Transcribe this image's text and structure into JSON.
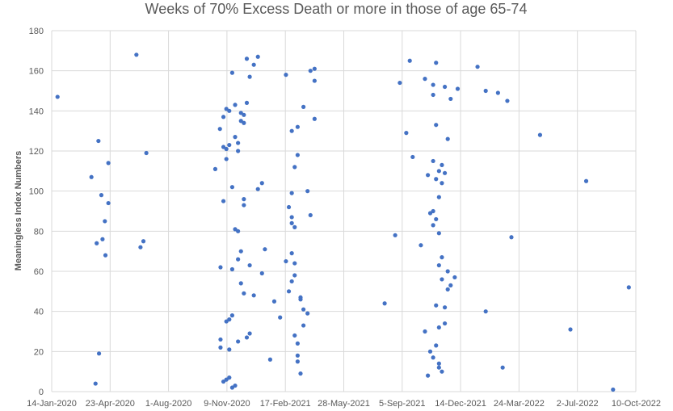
{
  "chart_data": {
    "type": "scatter",
    "title": "Weeks of 70% Excess Death or more in those of age 65-74",
    "xlabel": "",
    "ylabel": "Meaningless Index Numbers",
    "x_ticks": [
      "14-Jan-2020",
      "23-Apr-2020",
      "1-Aug-2020",
      "9-Nov-2020",
      "17-Feb-2021",
      "28-May-2021",
      "5-Sep-2021",
      "14-Dec-2021",
      "24-Mar-2022",
      "2-Jul-2022",
      "10-Oct-2022"
    ],
    "xlim": [
      "2020-01-14",
      "2022-10-10"
    ],
    "ylim": [
      0,
      180
    ],
    "y_ticks": [
      0,
      20,
      40,
      60,
      80,
      100,
      120,
      140,
      160,
      180
    ],
    "grid": "major gridlines on both axes",
    "marker_color": "#4472C4",
    "points": [
      [
        "2020-01-24",
        147
      ],
      [
        "2020-03-22",
        107
      ],
      [
        "2020-03-31",
        74
      ],
      [
        "2020-03-29",
        4
      ],
      [
        "2020-04-03",
        125
      ],
      [
        "2020-04-04",
        19
      ],
      [
        "2020-04-08",
        98
      ],
      [
        "2020-04-10",
        76
      ],
      [
        "2020-04-14",
        85
      ],
      [
        "2020-04-15",
        68
      ],
      [
        "2020-04-20",
        114
      ],
      [
        "2020-04-20",
        94
      ],
      [
        "2020-06-07",
        168
      ],
      [
        "2020-06-14",
        72
      ],
      [
        "2020-06-19",
        75
      ],
      [
        "2020-06-24",
        119
      ],
      [
        "2020-10-20",
        111
      ],
      [
        "2020-10-28",
        131
      ],
      [
        "2020-10-29",
        62
      ],
      [
        "2020-10-29",
        26
      ],
      [
        "2020-10-29",
        22
      ],
      [
        "2020-11-03",
        137
      ],
      [
        "2020-11-03",
        122
      ],
      [
        "2020-11-03",
        95
      ],
      [
        "2020-11-03",
        5
      ],
      [
        "2020-11-08",
        141
      ],
      [
        "2020-11-08",
        116
      ],
      [
        "2020-11-08",
        121
      ],
      [
        "2020-11-08",
        35
      ],
      [
        "2020-11-08",
        6
      ],
      [
        "2020-11-13",
        140
      ],
      [
        "2020-11-13",
        123
      ],
      [
        "2020-11-13",
        36
      ],
      [
        "2020-11-13",
        21
      ],
      [
        "2020-11-13",
        7
      ],
      [
        "2020-11-18",
        159
      ],
      [
        "2020-11-18",
        102
      ],
      [
        "2020-11-18",
        61
      ],
      [
        "2020-11-18",
        38
      ],
      [
        "2020-11-18",
        2
      ],
      [
        "2020-11-23",
        143
      ],
      [
        "2020-11-23",
        127
      ],
      [
        "2020-11-23",
        81
      ],
      [
        "2020-11-23",
        3
      ],
      [
        "2020-11-28",
        124
      ],
      [
        "2020-11-28",
        120
      ],
      [
        "2020-11-28",
        80
      ],
      [
        "2020-11-28",
        66
      ],
      [
        "2020-11-28",
        25
      ],
      [
        "2020-12-03",
        139
      ],
      [
        "2020-12-03",
        135
      ],
      [
        "2020-12-03",
        70
      ],
      [
        "2020-12-03",
        54
      ],
      [
        "2020-12-08",
        138
      ],
      [
        "2020-12-08",
        134
      ],
      [
        "2020-12-08",
        96
      ],
      [
        "2020-12-08",
        93
      ],
      [
        "2020-12-08",
        49
      ],
      [
        "2020-12-13",
        144
      ],
      [
        "2020-12-13",
        166
      ],
      [
        "2020-12-13",
        27
      ],
      [
        "2020-12-18",
        157
      ],
      [
        "2020-12-18",
        63
      ],
      [
        "2020-12-18",
        29
      ],
      [
        "2020-12-25",
        163
      ],
      [
        "2020-12-25",
        48
      ],
      [
        "2021-01-01",
        167
      ],
      [
        "2021-01-01",
        101
      ],
      [
        "2021-01-08",
        104
      ],
      [
        "2021-01-08",
        59
      ],
      [
        "2021-01-13",
        71
      ],
      [
        "2021-01-22",
        16
      ],
      [
        "2021-01-29",
        45
      ],
      [
        "2021-02-08",
        37
      ],
      [
        "2021-02-18",
        158
      ],
      [
        "2021-02-18",
        65
      ],
      [
        "2021-02-23",
        92
      ],
      [
        "2021-02-23",
        50
      ],
      [
        "2021-02-28",
        130
      ],
      [
        "2021-02-28",
        99
      ],
      [
        "2021-02-28",
        87
      ],
      [
        "2021-02-28",
        84
      ],
      [
        "2021-02-28",
        69
      ],
      [
        "2021-02-28",
        55
      ],
      [
        "2021-03-05",
        112
      ],
      [
        "2021-03-05",
        82
      ],
      [
        "2021-03-05",
        64
      ],
      [
        "2021-03-05",
        58
      ],
      [
        "2021-03-05",
        28
      ],
      [
        "2021-03-10",
        132
      ],
      [
        "2021-03-10",
        118
      ],
      [
        "2021-03-10",
        24
      ],
      [
        "2021-03-10",
        18
      ],
      [
        "2021-03-10",
        15
      ],
      [
        "2021-03-15",
        47
      ],
      [
        "2021-03-15",
        46
      ],
      [
        "2021-03-15",
        9
      ],
      [
        "2021-03-20",
        142
      ],
      [
        "2021-03-20",
        41
      ],
      [
        "2021-03-20",
        33
      ],
      [
        "2021-03-27",
        100
      ],
      [
        "2021-03-27",
        39
      ],
      [
        "2021-04-01",
        160
      ],
      [
        "2021-04-01",
        88
      ],
      [
        "2021-04-08",
        161
      ],
      [
        "2021-04-08",
        155
      ],
      [
        "2021-04-08",
        136
      ],
      [
        "2021-08-06",
        44
      ],
      [
        "2021-08-24",
        78
      ],
      [
        "2021-09-01",
        154
      ],
      [
        "2021-09-12",
        129
      ],
      [
        "2021-09-18",
        165
      ],
      [
        "2021-09-23",
        117
      ],
      [
        "2021-10-07",
        73
      ],
      [
        "2021-10-14",
        156
      ],
      [
        "2021-10-14",
        30
      ],
      [
        "2021-10-19",
        108
      ],
      [
        "2021-10-19",
        8
      ],
      [
        "2021-10-23",
        89
      ],
      [
        "2021-10-23",
        20
      ],
      [
        "2021-10-28",
        153
      ],
      [
        "2021-10-28",
        148
      ],
      [
        "2021-10-28",
        115
      ],
      [
        "2021-10-28",
        90
      ],
      [
        "2021-10-28",
        83
      ],
      [
        "2021-10-28",
        17
      ],
      [
        "2021-11-02",
        164
      ],
      [
        "2021-11-02",
        133
      ],
      [
        "2021-11-02",
        106
      ],
      [
        "2021-11-02",
        86
      ],
      [
        "2021-11-02",
        43
      ],
      [
        "2021-11-02",
        23
      ],
      [
        "2021-11-07",
        110
      ],
      [
        "2021-11-07",
        97
      ],
      [
        "2021-11-07",
        79
      ],
      [
        "2021-11-07",
        63
      ],
      [
        "2021-11-07",
        32
      ],
      [
        "2021-11-07",
        14
      ],
      [
        "2021-11-07",
        12
      ],
      [
        "2021-11-12",
        113
      ],
      [
        "2021-11-12",
        104
      ],
      [
        "2021-11-12",
        67
      ],
      [
        "2021-11-12",
        56
      ],
      [
        "2021-11-12",
        10
      ],
      [
        "2021-11-17",
        152
      ],
      [
        "2021-11-17",
        109
      ],
      [
        "2021-11-17",
        42
      ],
      [
        "2021-11-17",
        34
      ],
      [
        "2021-11-22",
        126
      ],
      [
        "2021-11-22",
        60
      ],
      [
        "2021-11-22",
        51
      ],
      [
        "2021-11-27",
        146
      ],
      [
        "2021-11-27",
        53
      ],
      [
        "2021-12-04",
        57
      ],
      [
        "2021-12-09",
        151
      ],
      [
        "2022-01-12",
        162
      ],
      [
        "2022-01-26",
        150
      ],
      [
        "2022-01-26",
        40
      ],
      [
        "2022-02-16",
        149
      ],
      [
        "2022-02-24",
        12
      ],
      [
        "2022-03-04",
        145
      ],
      [
        "2022-03-11",
        77
      ],
      [
        "2022-04-29",
        128
      ],
      [
        "2022-06-20",
        31
      ],
      [
        "2022-07-17",
        105
      ],
      [
        "2022-09-01",
        1
      ],
      [
        "2022-09-28",
        52
      ]
    ]
  }
}
